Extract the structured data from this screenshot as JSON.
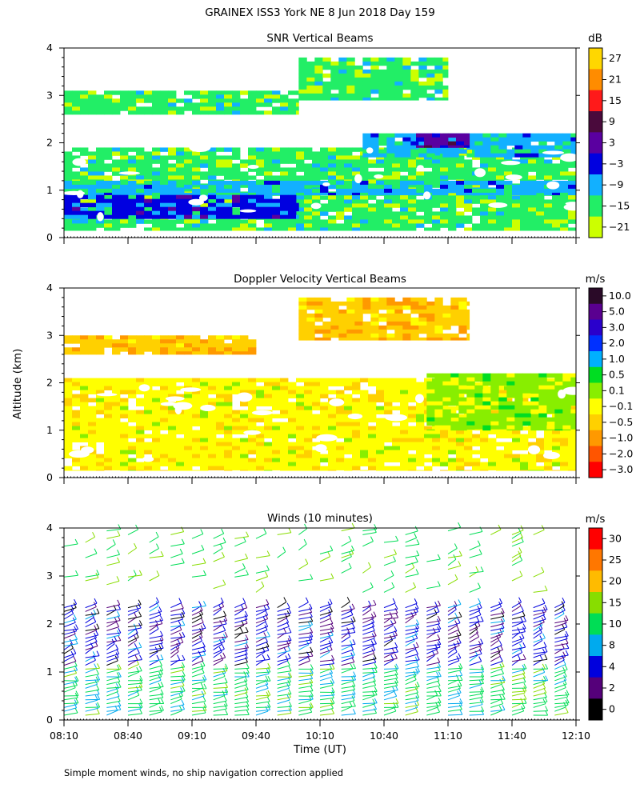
{
  "figure": {
    "title": "GRAINEX ISS3 York NE   8 Jun 2018 Day 159",
    "ylabel": "Altitude (km)",
    "xlabel": "Time (UT)",
    "footnote": "Simple moment winds, no ship navigation correction applied"
  },
  "chart_data": [
    {
      "type": "heatmap",
      "title": "SNR Vertical Beams",
      "colorbar_unit": "dB",
      "colorbar_ticks": [
        "27",
        "21",
        "15",
        "9",
        "3",
        "−3",
        "−9",
        "−15",
        "−21"
      ],
      "colorbar_colors": [
        "#ffd700",
        "#ff8c00",
        "#ff1a1a",
        "#4a0a3c",
        "#5a00a0",
        "#0000e0",
        "#12b0ff",
        "#22ee66",
        "#ccff00"
      ],
      "y_ticks": [
        "0",
        "1",
        "2",
        "3",
        "4"
      ],
      "ylim": [
        0,
        4
      ],
      "x_range": [
        "08:10",
        "12:10"
      ],
      "layers": [
        {
          "from": "08:10",
          "to": "12:10",
          "ymin": 0.15,
          "ymax": 1.9,
          "level": "-15"
        },
        {
          "from": "08:10",
          "to": "12:10",
          "ymin": 0.9,
          "ymax": 1.2,
          "level": "-9"
        },
        {
          "from": "08:10",
          "to": "10:00",
          "ymin": 0.4,
          "ymax": 0.9,
          "level": "-3"
        },
        {
          "from": "08:10",
          "to": "10:00",
          "ymin": 2.6,
          "ymax": 3.1,
          "level": "-15"
        },
        {
          "from": "10:00",
          "to": "11:10",
          "ymin": 2.9,
          "ymax": 3.8,
          "level": "-15"
        },
        {
          "from": "10:30",
          "to": "12:10",
          "ymin": 1.7,
          "ymax": 2.2,
          "level": "-9"
        },
        {
          "from": "10:55",
          "to": "11:20",
          "ymin": 1.9,
          "ymax": 2.2,
          "level": "3"
        }
      ]
    },
    {
      "type": "heatmap",
      "title": "Doppler Velocity Vertical Beams",
      "colorbar_unit": "m/s",
      "colorbar_ticks": [
        "10.0",
        "5.0",
        "3.0",
        "2.0",
        "1.0",
        "0.5",
        "0.1",
        "−0.1",
        "−0.5",
        "−1.0",
        "−2.0",
        "−3.0"
      ],
      "colorbar_colors": [
        "#2a0a28",
        "#5a0090",
        "#2a00cc",
        "#0030ff",
        "#00b0ff",
        "#00dd22",
        "#88ee00",
        "#ffff00",
        "#ffd000",
        "#ff9900",
        "#ff5500",
        "#ff0000"
      ],
      "y_ticks": [
        "0",
        "1",
        "2",
        "3",
        "4"
      ],
      "ylim": [
        0,
        4
      ],
      "x_range": [
        "08:10",
        "12:10"
      ],
      "layers": [
        {
          "from": "08:10",
          "to": "12:10",
          "ymin": 0.15,
          "ymax": 2.1,
          "level": "-0.1"
        },
        {
          "from": "08:10",
          "to": "09:40",
          "ymin": 2.6,
          "ymax": 3.0,
          "level": "-0.5"
        },
        {
          "from": "10:00",
          "to": "11:20",
          "ymin": 2.9,
          "ymax": 3.8,
          "level": "-0.5"
        },
        {
          "from": "11:00",
          "to": "12:10",
          "ymin": 1.0,
          "ymax": 2.2,
          "level": "0.1"
        }
      ]
    },
    {
      "type": "scatter",
      "title": "Winds (10 minutes)",
      "colorbar_unit": "m/s",
      "colorbar_ticks": [
        "30",
        "25",
        "20",
        "15",
        "10",
        "8",
        "4",
        "2",
        "0"
      ],
      "colorbar_colors": [
        "#ff0000",
        "#ff7700",
        "#ffbb00",
        "#88dd00",
        "#00dd55",
        "#00aaee",
        "#0000dd",
        "#55007a",
        "#000000"
      ],
      "y_ticks": [
        "0",
        "1",
        "2",
        "3",
        "4"
      ],
      "ylim": [
        0,
        4
      ],
      "x_ticks": [
        "08:10",
        "08:40",
        "09:10",
        "09:40",
        "10:10",
        "10:40",
        "11:10",
        "11:40",
        "12:10"
      ],
      "profile_times": [
        "08:10",
        "08:20",
        "08:30",
        "08:40",
        "08:50",
        "09:00",
        "09:10",
        "09:20",
        "09:30",
        "09:40",
        "09:50",
        "10:00",
        "10:10",
        "10:20",
        "10:30",
        "10:40",
        "10:50",
        "11:00",
        "11:10",
        "11:20",
        "11:30",
        "11:40",
        "11:50",
        "12:00",
        "12:10"
      ],
      "speed_bands": [
        {
          "ymin": 0.0,
          "ymax": 1.1,
          "speed": 12
        },
        {
          "ymin": 1.1,
          "ymax": 2.4,
          "speed": 5
        },
        {
          "ymin": 2.6,
          "ymax": 4.0,
          "speed": 14
        }
      ]
    }
  ]
}
